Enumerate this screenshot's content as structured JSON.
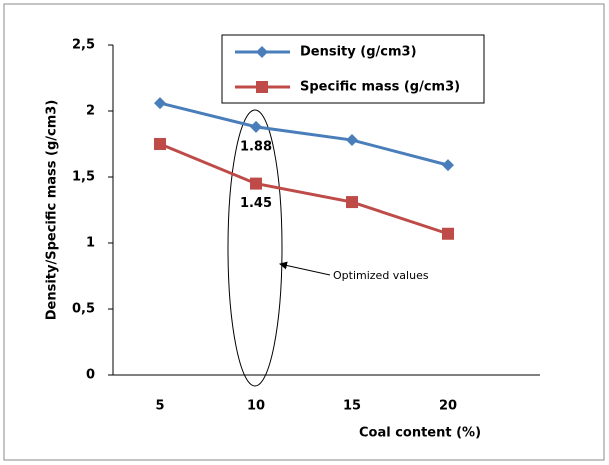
{
  "chart_data": {
    "type": "line",
    "categories": [
      "5",
      "10",
      "15",
      "20"
    ],
    "series": [
      {
        "name": "Density (g/cm3)",
        "color": "#4a7ebb",
        "marker": "diamond",
        "values": [
          2.06,
          1.88,
          1.78,
          1.59
        ],
        "value_labels": [
          null,
          "1.88",
          null,
          null
        ]
      },
      {
        "name": "Specific mass  (g/cm3)",
        "color": "#be4b48",
        "marker": "square",
        "values": [
          1.75,
          1.45,
          1.31,
          1.07
        ],
        "value_labels": [
          null,
          "1.45",
          null,
          null
        ]
      }
    ],
    "xlabel": "Coal content (%)",
    "ylabel": "Density/Specific mass (g/cm3)",
    "ylim": [
      0,
      2.5
    ],
    "yticks": [
      0,
      {
        "value": 0.5,
        "label": "0,5"
      },
      1,
      {
        "value": 1.5,
        "label": "1,5"
      },
      2,
      {
        "value": 2.5,
        "label": "2,5"
      }
    ],
    "annotation": "Optimized values"
  }
}
